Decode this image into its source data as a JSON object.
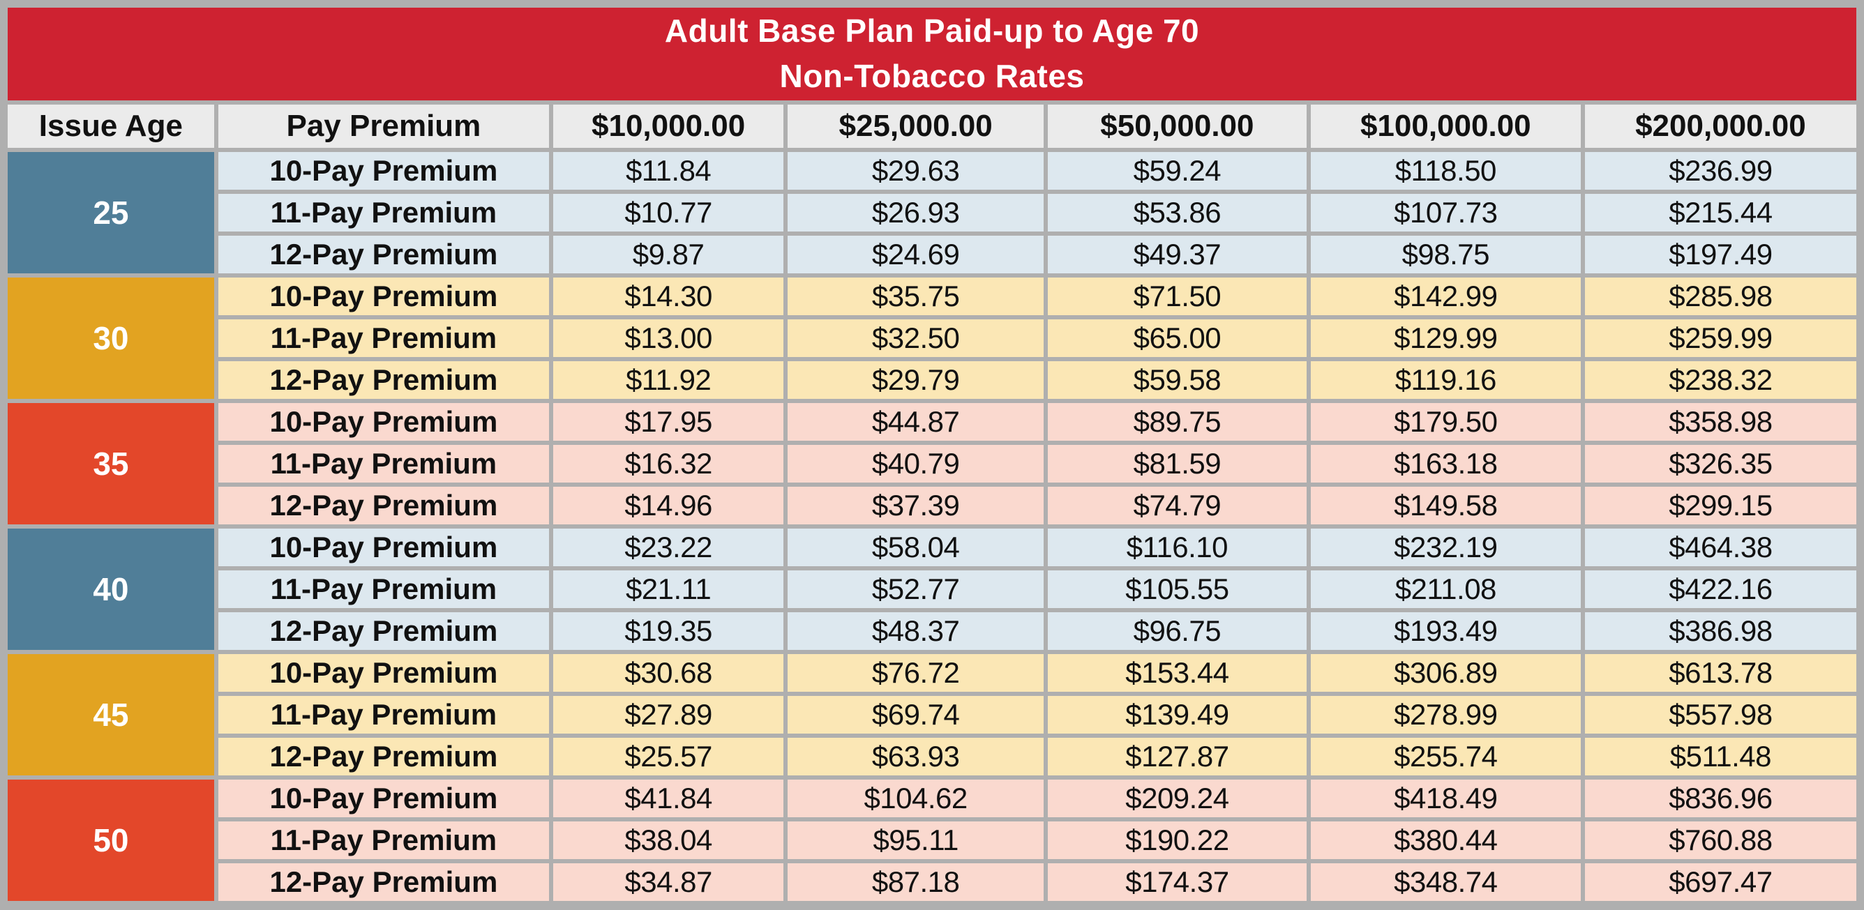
{
  "title": {
    "line1": "Adult Base Plan Paid-up to Age 70",
    "line2": "Non-Tobacco Rates"
  },
  "columns": [
    "Issue Age",
    "Pay Premium",
    "$10,000.00",
    "$25,000.00",
    "$50,000.00",
    "$100,000.00",
    "$200,000.00"
  ],
  "groups": [
    {
      "age": "25",
      "theme": "blue",
      "rows": [
        {
          "label": "10-Pay Premium",
          "values": [
            "$11.84",
            "$29.63",
            "$59.24",
            "$118.50",
            "$236.99"
          ]
        },
        {
          "label": "11-Pay Premium",
          "values": [
            "$10.77",
            "$26.93",
            "$53.86",
            "$107.73",
            "$215.44"
          ]
        },
        {
          "label": "12-Pay Premium",
          "values": [
            "$9.87",
            "$24.69",
            "$49.37",
            "$98.75",
            "$197.49"
          ]
        }
      ]
    },
    {
      "age": "30",
      "theme": "amber",
      "rows": [
        {
          "label": "10-Pay Premium",
          "values": [
            "$14.30",
            "$35.75",
            "$71.50",
            "$142.99",
            "$285.98"
          ]
        },
        {
          "label": "11-Pay Premium",
          "values": [
            "$13.00",
            "$32.50",
            "$65.00",
            "$129.99",
            "$259.99"
          ]
        },
        {
          "label": "12-Pay Premium",
          "values": [
            "$11.92",
            "$29.79",
            "$59.58",
            "$119.16",
            "$238.32"
          ]
        }
      ]
    },
    {
      "age": "35",
      "theme": "orange",
      "rows": [
        {
          "label": "10-Pay Premium",
          "values": [
            "$17.95",
            "$44.87",
            "$89.75",
            "$179.50",
            "$358.98"
          ]
        },
        {
          "label": "11-Pay Premium",
          "values": [
            "$16.32",
            "$40.79",
            "$81.59",
            "$163.18",
            "$326.35"
          ]
        },
        {
          "label": "12-Pay Premium",
          "values": [
            "$14.96",
            "$37.39",
            "$74.79",
            "$149.58",
            "$299.15"
          ]
        }
      ]
    },
    {
      "age": "40",
      "theme": "blue",
      "rows": [
        {
          "label": "10-Pay Premium",
          "values": [
            "$23.22",
            "$58.04",
            "$116.10",
            "$232.19",
            "$464.38"
          ]
        },
        {
          "label": "11-Pay Premium",
          "values": [
            "$21.11",
            "$52.77",
            "$105.55",
            "$211.08",
            "$422.16"
          ]
        },
        {
          "label": "12-Pay Premium",
          "values": [
            "$19.35",
            "$48.37",
            "$96.75",
            "$193.49",
            "$386.98"
          ]
        }
      ]
    },
    {
      "age": "45",
      "theme": "amber",
      "rows": [
        {
          "label": "10-Pay Premium",
          "values": [
            "$30.68",
            "$76.72",
            "$153.44",
            "$306.89",
            "$613.78"
          ]
        },
        {
          "label": "11-Pay Premium",
          "values": [
            "$27.89",
            "$69.74",
            "$139.49",
            "$278.99",
            "$557.98"
          ]
        },
        {
          "label": "12-Pay Premium",
          "values": [
            "$25.57",
            "$63.93",
            "$127.87",
            "$255.74",
            "$511.48"
          ]
        }
      ]
    },
    {
      "age": "50",
      "theme": "orange",
      "rows": [
        {
          "label": "10-Pay Premium",
          "values": [
            "$41.84",
            "$104.62",
            "$209.24",
            "$418.49",
            "$836.96"
          ]
        },
        {
          "label": "11-Pay Premium",
          "values": [
            "$38.04",
            "$95.11",
            "$190.22",
            "$380.44",
            "$760.88"
          ]
        },
        {
          "label": "12-Pay Premium",
          "values": [
            "$34.87",
            "$87.18",
            "$174.37",
            "$348.74",
            "$697.47"
          ]
        }
      ]
    }
  ],
  "colors": {
    "header_red": "#CE2231",
    "frame_gray": "#AFAFAF",
    "head_gray": "#EBEBEB",
    "block_blue": "#507E98",
    "block_amber": "#E2A321",
    "block_orange": "#E3472A",
    "tint_blue": "#DDE8EF",
    "tint_amber": "#FBE7B5",
    "tint_orange": "#FAD9CF"
  }
}
